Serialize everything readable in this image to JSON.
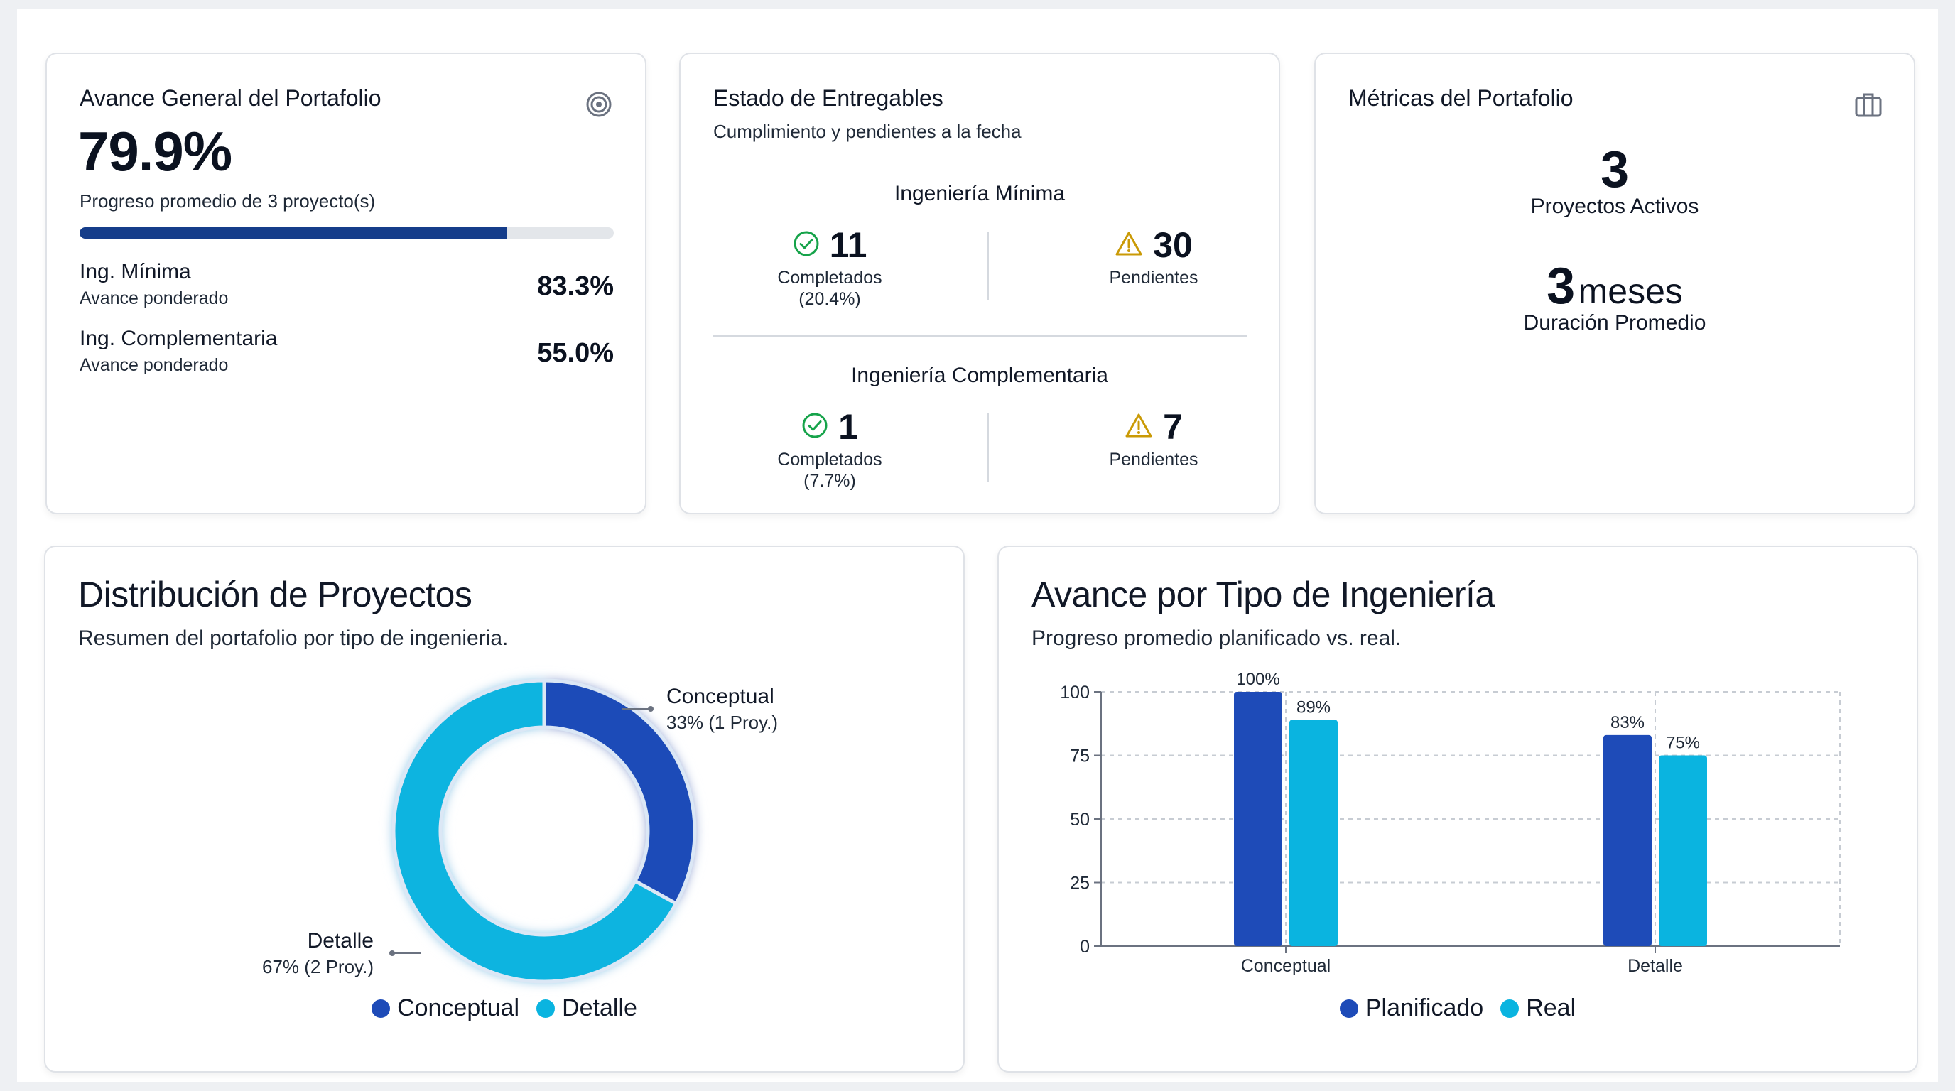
{
  "colors": {
    "primary": "#1e4bb8",
    "secondary": "#0ab4e0",
    "progress_fill": "#153d8a",
    "progress_track": "#e3e6ea",
    "success": "#16a34a",
    "warning": "#ca9a06"
  },
  "avance": {
    "title": "Avance General del Portafolio",
    "icon": "target-icon",
    "percent_label": "79.9%",
    "progress_fraction": 0.799,
    "subtitle": "Progreso promedio de 3 proyecto(s)",
    "rows": [
      {
        "name": "Ing. Mínima",
        "sub": "Avance ponderado",
        "value": "83.3%"
      },
      {
        "name": "Ing. Complementaria",
        "sub": "Avance ponderado",
        "value": "55.0%"
      }
    ]
  },
  "entregables": {
    "title": "Estado de Entregables",
    "subtitle": "Cumplimiento y pendientes a la fecha",
    "groups": [
      {
        "name": "Ingeniería Mínima",
        "completed": "11",
        "completed_label": "Completados",
        "completed_pct": "(20.4%)",
        "pending": "30",
        "pending_label": "Pendientes"
      },
      {
        "name": "Ingeniería Complementaria",
        "completed": "1",
        "completed_label": "Completados",
        "completed_pct": "(7.7%)",
        "pending": "7",
        "pending_label": "Pendientes"
      }
    ]
  },
  "metricas": {
    "title": "Métricas del Portafolio",
    "icon": "briefcase-icon",
    "active_value": "3",
    "active_label": "Proyectos Activos",
    "duration_value": "3",
    "duration_unit": "meses",
    "duration_label": "Duración Promedio"
  },
  "distribucion": {
    "title": "Distribución de Proyectos",
    "subtitle": "Resumen del portafolio por tipo de ingenieria.",
    "legend": [
      "Conceptual",
      "Detalle"
    ],
    "callouts": [
      {
        "name": "Conceptual",
        "detail": "33% (1 Proy.)"
      },
      {
        "name": "Detalle",
        "detail": "67% (2 Proy.)"
      }
    ]
  },
  "tipo": {
    "title": "Avance por Tipo de Ingeniería",
    "subtitle": "Progreso promedio planificado vs. real."
  },
  "chart_data": [
    {
      "type": "pie",
      "donut": true,
      "categories": [
        "Conceptual",
        "Detalle"
      ],
      "values": [
        33,
        67
      ],
      "counts": [
        1,
        2
      ],
      "colors": [
        "#1e4bb8",
        "#0ab4e0"
      ],
      "legend": "bottom"
    },
    {
      "type": "bar",
      "categories": [
        "Conceptual",
        "Detalle"
      ],
      "series": [
        {
          "name": "Planificado",
          "values": [
            100,
            83
          ],
          "labels": [
            "100%",
            "83%"
          ],
          "color": "#1e4bb8"
        },
        {
          "name": "Real",
          "values": [
            89,
            75
          ],
          "labels": [
            "89%",
            "75%"
          ],
          "color": "#0ab4e0"
        }
      ],
      "ylim": [
        0,
        100
      ],
      "yticks": [
        "0",
        "25",
        "50",
        "75",
        "100"
      ],
      "grid": true,
      "legend": "bottom"
    }
  ]
}
